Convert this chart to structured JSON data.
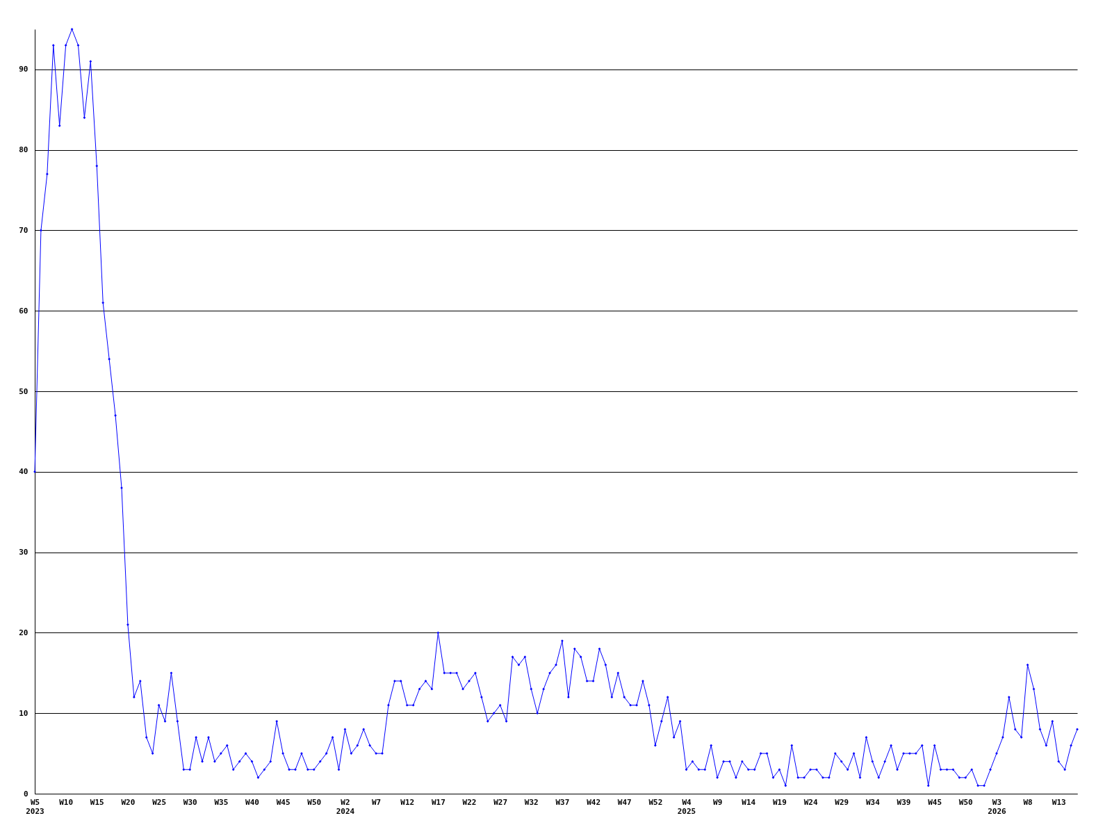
{
  "chart_data": {
    "type": "line",
    "categories": [
      "W5",
      null,
      null,
      null,
      null,
      "W10",
      null,
      null,
      null,
      null,
      "W15",
      null,
      null,
      null,
      null,
      "W20",
      null,
      null,
      null,
      null,
      "W25",
      null,
      null,
      null,
      null,
      "W30",
      null,
      null,
      null,
      null,
      "W35",
      null,
      null,
      null,
      null,
      "W40",
      null,
      null,
      null,
      null,
      "W45",
      null,
      null,
      null,
      null,
      "W50",
      null,
      null,
      null,
      null,
      "W2",
      null,
      null,
      null,
      null,
      "W7",
      null,
      null,
      null,
      null,
      "W12",
      null,
      null,
      null,
      null,
      "W17",
      null,
      null,
      null,
      null,
      "W22",
      null,
      null,
      null,
      null,
      "W27",
      null,
      null,
      null,
      null,
      "W32",
      null,
      null,
      null,
      null,
      "W37",
      null,
      null,
      null,
      null,
      "W42",
      null,
      null,
      null,
      null,
      "W47",
      null,
      null,
      null,
      null,
      "W52",
      null,
      null,
      null,
      null,
      "W4",
      null,
      null,
      null,
      null,
      "W9",
      null,
      null,
      null,
      null,
      "W14",
      null,
      null,
      null,
      null,
      "W19",
      null,
      null,
      null,
      null,
      "W24",
      null,
      null,
      null,
      null,
      "W29",
      null,
      null,
      null,
      null,
      "W34",
      null,
      null,
      null,
      null,
      "W39",
      null,
      null,
      null,
      null,
      "W45",
      null,
      null,
      null,
      null,
      "W50",
      null,
      null,
      null,
      null,
      "W3",
      null,
      null,
      null,
      null,
      "W8",
      null,
      null,
      null,
      null,
      "W13",
      null,
      null,
      null
    ],
    "values": [
      40,
      70,
      77,
      93,
      83,
      93,
      95,
      93,
      84,
      91,
      78,
      61,
      54,
      47,
      38,
      21,
      12,
      14,
      7,
      5,
      11,
      9,
      15,
      9,
      3,
      3,
      7,
      4,
      7,
      4,
      5,
      6,
      3,
      4,
      5,
      4,
      2,
      3,
      4,
      9,
      5,
      3,
      3,
      5,
      3,
      3,
      4,
      5,
      7,
      3,
      8,
      5,
      6,
      8,
      6,
      5,
      5,
      11,
      14,
      14,
      11,
      11,
      13,
      14,
      13,
      20,
      15,
      15,
      15,
      13,
      14,
      15,
      12,
      9,
      10,
      11,
      9,
      17,
      16,
      17,
      13,
      10,
      13,
      15,
      16,
      19,
      12,
      18,
      17,
      14,
      14,
      18,
      16,
      12,
      15,
      12,
      11,
      11,
      14,
      11,
      6,
      9,
      12,
      7,
      9,
      3,
      4,
      3,
      3,
      6,
      2,
      4,
      4,
      2,
      4,
      3,
      3,
      5,
      5,
      2,
      3,
      1,
      6,
      2,
      2,
      3,
      3,
      2,
      2,
      5,
      4,
      3,
      5,
      2,
      7,
      4,
      2,
      4,
      6,
      3,
      5,
      5,
      5,
      6,
      1,
      6,
      3,
      3,
      3,
      2,
      2,
      3,
      1,
      1,
      3,
      5,
      7,
      12,
      8,
      7,
      16,
      13,
      8,
      6,
      9,
      4,
      3,
      6,
      8
    ],
    "color": "#0000ff",
    "ylim": [
      0,
      95
    ],
    "yticks": [
      0,
      10,
      20,
      30,
      40,
      50,
      60,
      70,
      80,
      90
    ],
    "grid": "y",
    "marker": "diamond",
    "annotations": [
      "2023",
      "2024",
      "2025",
      "2026"
    ]
  }
}
